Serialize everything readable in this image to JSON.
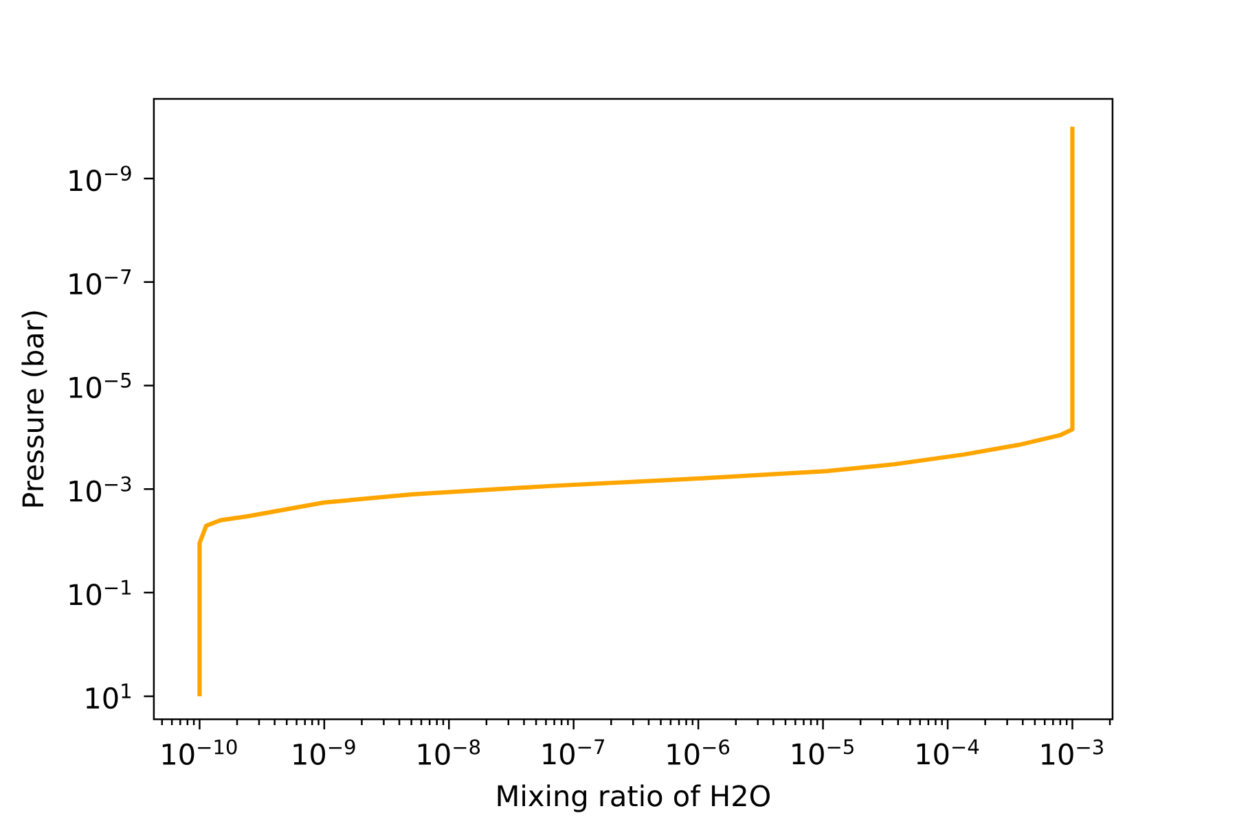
{
  "chart_data": {
    "type": "line",
    "xlabel": "Mixing ratio of H2O",
    "ylabel": "Pressure (bar)",
    "log": "xy",
    "marker": "none",
    "line_style": "solid",
    "color": "#ffa500",
    "x": [
      1e-10,
      1e-10,
      1.13e-10,
      1.47e-10,
      2.43e-10,
      9.9e-10,
      5.1e-09,
      6.5e-08,
      8.3e-07,
      1.06e-05,
      3.77e-05,
      0.000134,
      0.00037,
      0.000796,
      0.001,
      0.001
    ],
    "values": [
      10,
      0.011,
      0.0051,
      0.004,
      0.00335,
      0.00182,
      0.00126,
      0.00087,
      0.00064,
      0.00045,
      0.00033,
      0.000215,
      0.00014,
      9.1e-05,
      7e-05,
      1e-10
    ],
    "xlim": [
      4.3e-11,
      0.0021
    ],
    "ylim": [
      28,
      2.9e-11
    ],
    "xticks": [
      {
        "value": 1e-10,
        "label": "10$^{−10}$"
      },
      {
        "value": 1e-09,
        "label": "10$^{−9}$"
      },
      {
        "value": 1e-08,
        "label": "10$^{−8}$"
      },
      {
        "value": 1e-07,
        "label": "10$^{−7}$"
      },
      {
        "value": 1e-06,
        "label": "10$^{−6}$"
      },
      {
        "value": 1e-05,
        "label": "10$^{−5}$"
      },
      {
        "value": 0.0001,
        "label": "10$^{−4}$"
      },
      {
        "value": 0.001,
        "label": "10$^{−3}$"
      },
      {
        "value": 5e-11,
        "label": null
      },
      {
        "value": 6e-11,
        "label": null
      },
      {
        "value": 7e-11,
        "label": null
      },
      {
        "value": 8e-11,
        "label": null
      },
      {
        "value": 9e-11,
        "label": null
      },
      {
        "value": 2e-10,
        "label": null
      },
      {
        "value": 3e-10,
        "label": null
      },
      {
        "value": 4e-10,
        "label": null
      },
      {
        "value": 5e-10,
        "label": null
      },
      {
        "value": 6e-10,
        "label": null
      },
      {
        "value": 7e-10,
        "label": null
      },
      {
        "value": 8e-10,
        "label": null
      },
      {
        "value": 9e-10,
        "label": null
      },
      {
        "value": 2e-09,
        "label": null
      },
      {
        "value": 3e-09,
        "label": null
      },
      {
        "value": 4e-09,
        "label": null
      },
      {
        "value": 5e-09,
        "label": null
      },
      {
        "value": 6e-09,
        "label": null
      },
      {
        "value": 7e-09,
        "label": null
      },
      {
        "value": 8e-09,
        "label": null
      },
      {
        "value": 9e-09,
        "label": null
      },
      {
        "value": 2e-08,
        "label": null
      },
      {
        "value": 3e-08,
        "label": null
      },
      {
        "value": 4e-08,
        "label": null
      },
      {
        "value": 5e-08,
        "label": null
      },
      {
        "value": 6e-08,
        "label": null
      },
      {
        "value": 7e-08,
        "label": null
      },
      {
        "value": 8e-08,
        "label": null
      },
      {
        "value": 9e-08,
        "label": null
      },
      {
        "value": 2e-07,
        "label": null
      },
      {
        "value": 3e-07,
        "label": null
      },
      {
        "value": 4e-07,
        "label": null
      },
      {
        "value": 5e-07,
        "label": null
      },
      {
        "value": 6e-07,
        "label": null
      },
      {
        "value": 7e-07,
        "label": null
      },
      {
        "value": 8e-07,
        "label": null
      },
      {
        "value": 9e-07,
        "label": null
      },
      {
        "value": 2e-06,
        "label": null
      },
      {
        "value": 3e-06,
        "label": null
      },
      {
        "value": 4e-06,
        "label": null
      },
      {
        "value": 5e-06,
        "label": null
      },
      {
        "value": 6e-06,
        "label": null
      },
      {
        "value": 7e-06,
        "label": null
      },
      {
        "value": 8e-06,
        "label": null
      },
      {
        "value": 9e-06,
        "label": null
      },
      {
        "value": 2e-05,
        "label": null
      },
      {
        "value": 3e-05,
        "label": null
      },
      {
        "value": 4e-05,
        "label": null
      },
      {
        "value": 5e-05,
        "label": null
      },
      {
        "value": 6e-05,
        "label": null
      },
      {
        "value": 7e-05,
        "label": null
      },
      {
        "value": 8e-05,
        "label": null
      },
      {
        "value": 9e-05,
        "label": null
      },
      {
        "value": 0.0002,
        "label": null
      },
      {
        "value": 0.0003,
        "label": null
      },
      {
        "value": 0.0004,
        "label": null
      },
      {
        "value": 0.0005,
        "label": null
      },
      {
        "value": 0.0006,
        "label": null
      },
      {
        "value": 0.0007,
        "label": null
      },
      {
        "value": 0.0008,
        "label": null
      },
      {
        "value": 0.0009,
        "label": null
      },
      {
        "value": 0.002,
        "label": null
      }
    ],
    "yticks": [
      {
        "value": 1e-09,
        "label": "10$^{−9}$"
      },
      {
        "value": 1e-07,
        "label": "10$^{−7}$"
      },
      {
        "value": 1e-05,
        "label": "10$^{−5}$"
      },
      {
        "value": 0.001,
        "label": "10$^{−3}$"
      },
      {
        "value": 0.1,
        "label": "10$^{−1}$"
      },
      {
        "value": 10,
        "label": "10$^{1}$"
      }
    ]
  }
}
